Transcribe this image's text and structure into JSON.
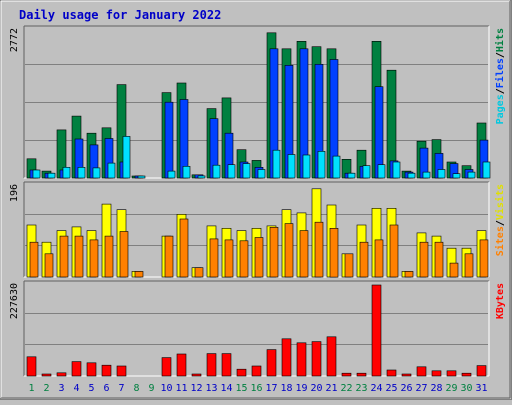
{
  "chart_data": {
    "type": "bar",
    "title": "Daily usage for January 2022",
    "categories": [
      "1",
      "2",
      "3",
      "4",
      "5",
      "6",
      "7",
      "8",
      "9",
      "10",
      "11",
      "12",
      "13",
      "14",
      "15",
      "16",
      "17",
      "18",
      "19",
      "20",
      "21",
      "22",
      "23",
      "24",
      "25",
      "26",
      "27",
      "28",
      "29",
      "30",
      "31"
    ],
    "weekend_days": [
      1,
      2,
      8,
      9,
      15,
      16,
      22,
      23,
      29,
      30
    ],
    "panels": [
      {
        "name": "hits-files-pages",
        "ymax_label": "2772",
        "ymax": 2772,
        "legend": [
          {
            "text": "Pages",
            "color": "#00c8e0"
          },
          {
            "text": "/",
            "color": "#000000"
          },
          {
            "text": "Files",
            "color": "#0040ff"
          },
          {
            "text": "/",
            "color": "#000000"
          },
          {
            "text": "Hits",
            "color": "#008040"
          }
        ],
        "series": [
          {
            "name": "Hits",
            "color": "#008040",
            "values": [
              360,
              130,
              900,
              1160,
              840,
              940,
              1750,
              20,
              0,
              1600,
              1780,
              60,
              1300,
              1500,
              530,
              330,
              2720,
              2420,
              2560,
              2460,
              2420,
              350,
              520,
              2560,
              2020,
              130,
              690,
              720,
              300,
              230,
              1030
            ]
          },
          {
            "name": "Files",
            "color": "#0040ff",
            "values": [
              150,
              90,
              150,
              730,
              620,
              740,
              300,
              20,
              0,
              1420,
              1470,
              60,
              1110,
              840,
              300,
              200,
              2420,
              2110,
              2420,
              2130,
              2220,
              90,
              220,
              1710,
              320,
              110,
              560,
              460,
              270,
              160,
              710
            ]
          },
          {
            "name": "Pages",
            "color": "#00e0ff",
            "values": [
              150,
              90,
              200,
              200,
              190,
              280,
              780,
              20,
              0,
              130,
              220,
              40,
              240,
              250,
              270,
              160,
              520,
              440,
              430,
              500,
              410,
              90,
              230,
              250,
              300,
              90,
              110,
              160,
              80,
              110,
              300
            ]
          }
        ]
      },
      {
        "name": "visits-sites",
        "ymax_label": "196",
        "ymax": 196,
        "legend": [
          {
            "text": "Sites",
            "color": "#ff8000"
          },
          {
            "text": "/",
            "color": "#000000"
          },
          {
            "text": "Visits",
            "color": "#e0e000"
          }
        ],
        "series": [
          {
            "name": "Visits",
            "color": "#ffff00",
            "values": [
              112,
              75,
              100,
              108,
              100,
              157,
              145,
              12,
              0,
              88,
              135,
              20,
              110,
              105,
              100,
              105,
              110,
              145,
              138,
              190,
              155,
              50,
              112,
              148,
              148,
              12,
              95,
              88,
              62,
              62,
              100
            ]
          },
          {
            "name": "Sites",
            "color": "#ff8000",
            "values": [
              75,
              50,
              88,
              88,
              80,
              88,
              98,
              12,
              0,
              88,
              125,
              20,
              82,
              80,
              78,
              85,
              107,
              115,
              100,
              118,
              105,
              50,
              75,
              80,
              112,
              12,
              75,
              75,
              30,
              50,
              80
            ]
          }
        ]
      },
      {
        "name": "kbytes",
        "ymax_label": "227630",
        "ymax": 227630,
        "legend": [
          {
            "text": "KBytes",
            "color": "#ff0000"
          }
        ],
        "series": [
          {
            "name": "KBytes",
            "color": "#ff0000",
            "values": [
              48000,
              3000,
              8000,
              36000,
              33000,
              27000,
              25000,
              0,
              0,
              46000,
              55000,
              5000,
              56000,
              56000,
              17000,
              25000,
              66000,
              93000,
              83000,
              86000,
              98000,
              7000,
              7000,
              227630,
              15000,
              3000,
              23000,
              13000,
              13000,
              7000,
              26000
            ]
          }
        ]
      }
    ]
  }
}
